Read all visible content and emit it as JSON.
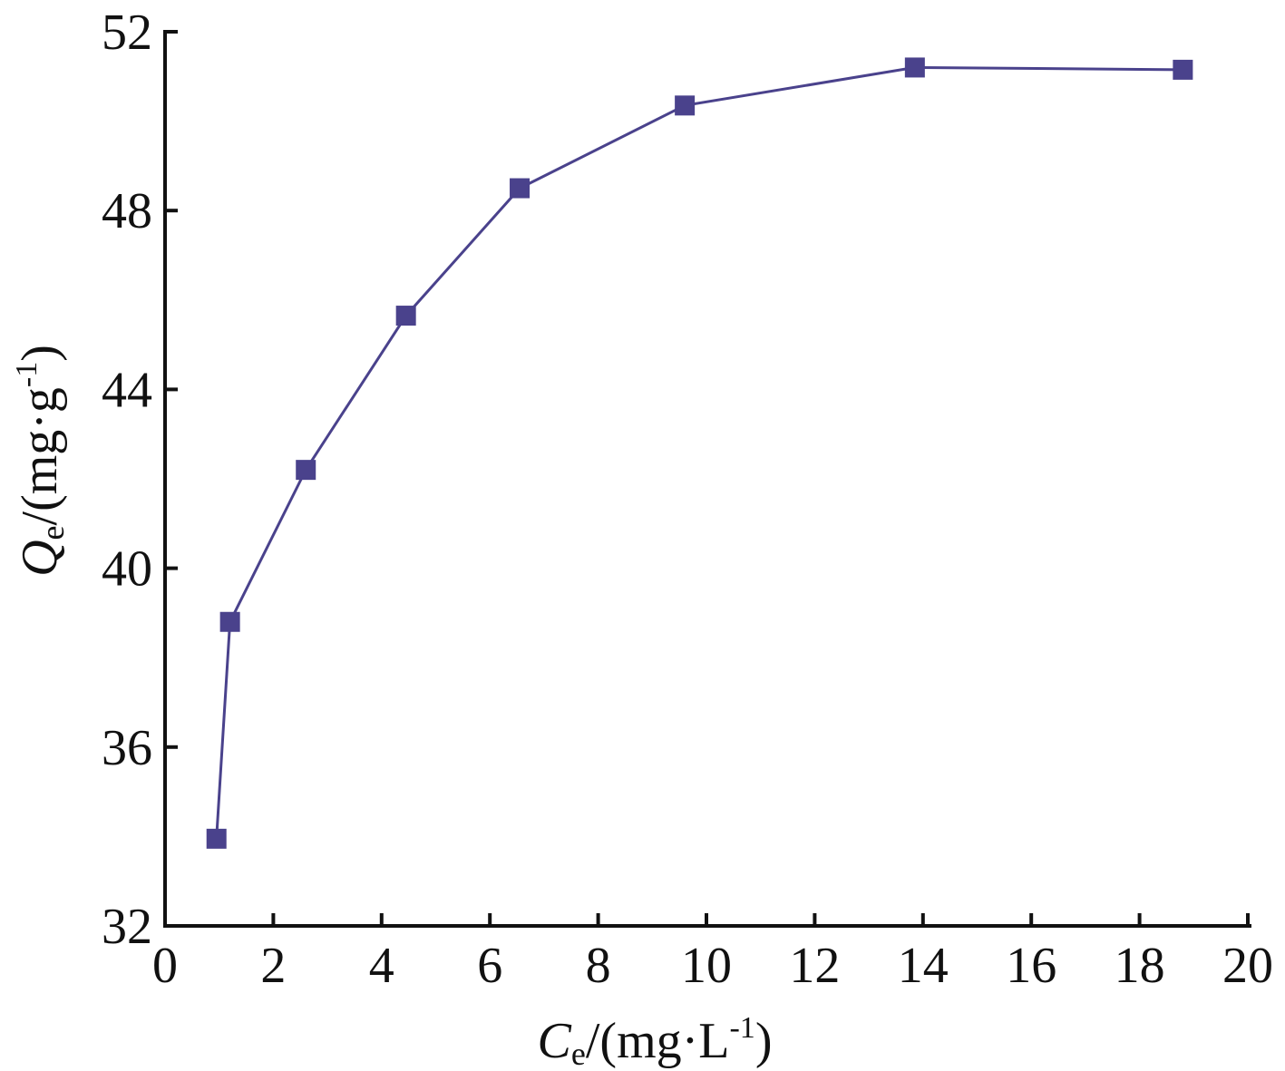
{
  "chart_data": {
    "type": "line",
    "title": "",
    "xlabel": {
      "main": "C",
      "sub": "e",
      "unit_open": "/(mg·L",
      "unit_sup": "-1",
      "unit_close": ")"
    },
    "ylabel": {
      "main": "Q",
      "sub": "e",
      "unit_open": "/(mg·g",
      "unit_sup": "-1",
      "unit_close": ")"
    },
    "xlim": [
      0,
      20
    ],
    "ylim": [
      32,
      52
    ],
    "xticks": [
      "0",
      "2",
      "4",
      "6",
      "8",
      "10",
      "12",
      "14",
      "16",
      "18",
      "20"
    ],
    "yticks": [
      "32",
      "36",
      "40",
      "44",
      "48",
      "52"
    ],
    "grid": false,
    "series": [
      {
        "color": "#4a428c",
        "marker": "square",
        "x": [
          0.95,
          1.2,
          2.6,
          4.45,
          6.55,
          9.6,
          13.85,
          18.8
        ],
        "y": [
          33.95,
          38.8,
          42.2,
          45.65,
          48.5,
          50.35,
          51.2,
          51.15
        ]
      }
    ]
  }
}
